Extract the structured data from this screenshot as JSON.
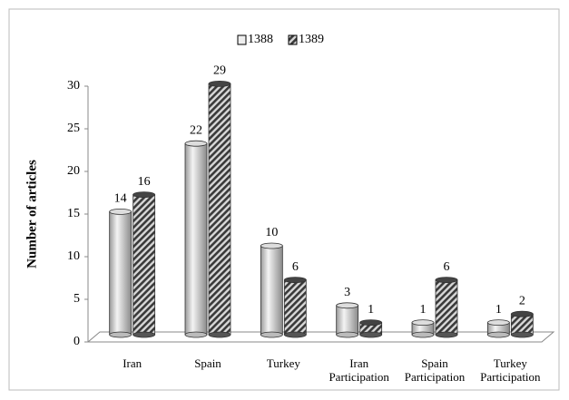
{
  "chart_data": {
    "type": "bar",
    "y_label": "Number of articles",
    "categories": [
      "Iran",
      "Spain",
      "Turkey",
      "Iran Participation",
      "Spain Participation",
      "Turkey Participation"
    ],
    "series": [
      {
        "name": "1388",
        "color": "#e0e0e0",
        "values": [
          14,
          22,
          10,
          3,
          1,
          1
        ]
      },
      {
        "name": "1389",
        "color": "#555555",
        "values": [
          16,
          29,
          6,
          1,
          6,
          2
        ]
      }
    ],
    "ylim": [
      0,
      30
    ],
    "yticks": [
      0,
      5,
      10,
      15,
      20,
      25,
      30
    ],
    "legend": "top"
  }
}
